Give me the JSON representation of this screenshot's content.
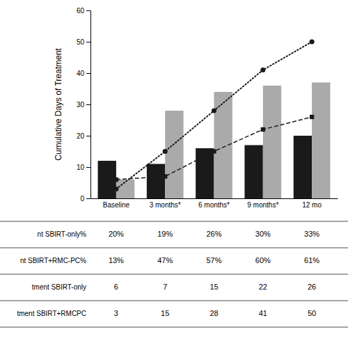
{
  "chart_data": {
    "type": "bar",
    "categories": [
      "Baseline",
      "3 months*",
      "6 months*",
      "9 months*",
      "12 mo"
    ],
    "ylabel": "Cumulative Days of Treatment",
    "ylim": [
      0,
      60
    ],
    "yticks": [
      0,
      10,
      20,
      30,
      40,
      50,
      60
    ],
    "grid": false,
    "series": [
      {
        "type": "bar",
        "color": "#1a1a1a",
        "values": [
          12,
          11,
          16,
          17,
          20
        ]
      },
      {
        "type": "bar",
        "color": "#aaaaaa",
        "values": [
          6,
          28,
          34,
          36,
          37
        ]
      },
      {
        "type": "line",
        "color": "#1a1a1a",
        "line_style": "dashed",
        "marker": "square",
        "values": [
          6,
          7,
          15,
          22,
          26
        ]
      },
      {
        "type": "line",
        "color": "#1a1a1a",
        "line_style": "dotted",
        "marker": "circle",
        "values": [
          3,
          15,
          28,
          41,
          50
        ]
      }
    ],
    "table": {
      "row_labels": [
        "nt SBIRT-only%",
        "nt SBIRT+RMC-PC%",
        "tment SBIRT-only",
        "tment SBIRT+RMCPC"
      ],
      "cells": [
        [
          "20%",
          "19%",
          "26%",
          "30%",
          "33%"
        ],
        [
          "13%",
          "47%",
          "57%",
          "60%",
          "61%"
        ],
        [
          "6",
          "7",
          "15",
          "22",
          "26"
        ],
        [
          "3",
          "15",
          "28",
          "41",
          "50"
        ]
      ]
    }
  }
}
